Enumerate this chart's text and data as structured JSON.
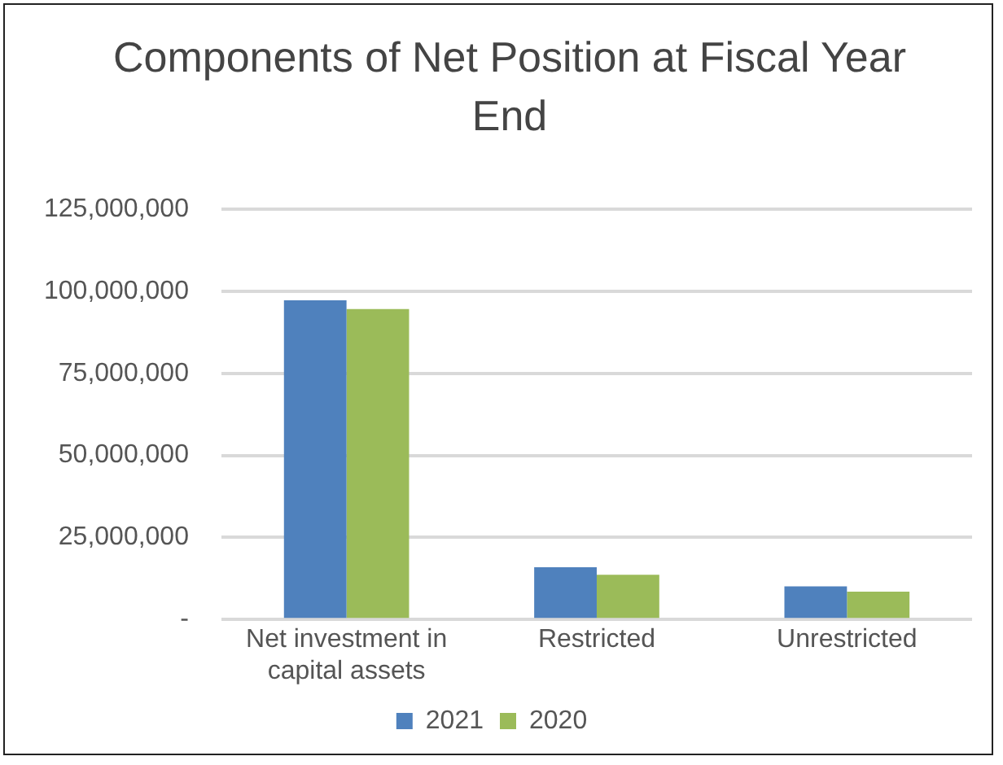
{
  "chart_data": {
    "type": "bar",
    "title": "Components of Net Position at Fiscal Year End",
    "categories": [
      "Net investment in capital assets",
      "Restricted",
      "Unrestricted"
    ],
    "series": [
      {
        "name": "2021",
        "color": "#4f81bd",
        "values": [
          97300000,
          15900000,
          10100000
        ]
      },
      {
        "name": "2020",
        "color": "#9bbb59",
        "values": [
          94600000,
          13600000,
          8500000
        ]
      }
    ],
    "ylim": [
      0,
      125000000
    ],
    "yticks": [
      {
        "value": 0,
        "label": "-"
      },
      {
        "value": 25000000,
        "label": "25,000,000"
      },
      {
        "value": 50000000,
        "label": "50,000,000"
      },
      {
        "value": 75000000,
        "label": "75,000,000"
      },
      {
        "value": 100000000,
        "label": "100,000,000"
      },
      {
        "value": 125000000,
        "label": "125,000,000"
      }
    ],
    "grid": "y",
    "legend": "bottom"
  }
}
